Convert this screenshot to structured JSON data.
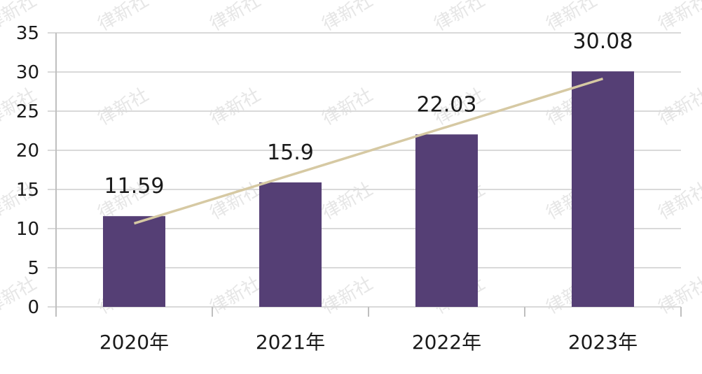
{
  "chart_data": {
    "type": "bar",
    "categories": [
      "2020年",
      "2021年",
      "2022年",
      "2023年"
    ],
    "values": [
      11.59,
      15.9,
      22.03,
      30.08
    ],
    "data_labels": [
      "11.59",
      "15.9",
      "22.03",
      "30.08"
    ],
    "trendline": true,
    "title": "",
    "xlabel": "",
    "ylabel": "",
    "ylim": [
      0,
      35
    ],
    "yticks": [
      "0",
      "5",
      "10",
      "15",
      "20",
      "25",
      "30",
      "35"
    ],
    "grid": true,
    "legend": "none"
  },
  "colors": {
    "bar": "#553f75",
    "trendline": "#d6c9a3",
    "grid": "#d9d9d9",
    "axis": "#bfbfbf",
    "watermark": "#e6e6e6"
  },
  "watermark": "律新社"
}
